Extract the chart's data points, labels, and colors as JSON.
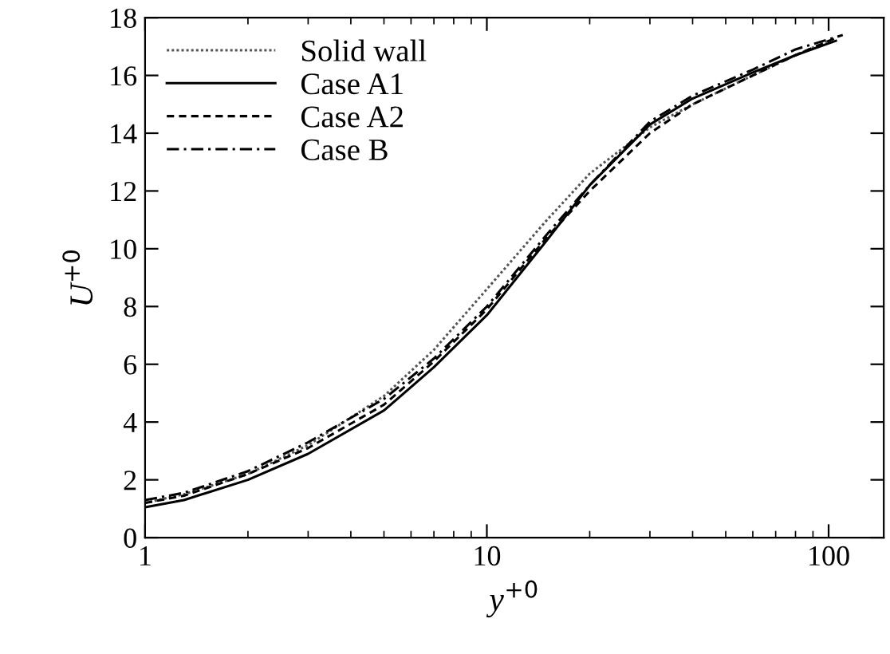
{
  "chart_data": {
    "type": "line",
    "xlabel": "y$^{+0}$",
    "ylabel": "U$^{+0}$",
    "log": "x",
    "xlim": [
      1,
      145
    ],
    "xticks": [
      1,
      10,
      100
    ],
    "ylim": [
      0,
      18
    ],
    "yticks": [
      0,
      2,
      4,
      6,
      8,
      10,
      12,
      14,
      16,
      18
    ],
    "grid": false,
    "legend": "top left",
    "x": [
      1,
      1.3,
      2,
      3,
      5,
      7,
      10,
      15,
      20,
      30,
      40,
      60,
      80,
      105
    ],
    "series": [
      {
        "name": "Solid wall",
        "color": "#555555",
        "line_style": "dotted",
        "x": [
          1,
          1.3,
          2,
          3,
          5,
          7,
          10,
          15,
          20,
          30,
          40,
          60,
          80,
          100
        ],
        "values": [
          1.2,
          1.5,
          2.2,
          3.2,
          4.9,
          6.5,
          8.6,
          11.0,
          12.6,
          14.2,
          15.0,
          16.0,
          16.7,
          17.2
        ]
      },
      {
        "name": "Case A1",
        "color": "#000000",
        "line_style": "solid",
        "values": [
          1.05,
          1.3,
          2.0,
          2.9,
          4.4,
          5.9,
          7.7,
          10.3,
          12.2,
          14.3,
          15.2,
          16.1,
          16.7,
          17.2
        ]
      },
      {
        "name": "Case A2",
        "color": "#000000",
        "line_style": "dashed",
        "values": [
          1.2,
          1.45,
          2.2,
          3.1,
          4.6,
          6.1,
          7.9,
          10.4,
          12.0,
          14.0,
          15.0,
          16.0,
          16.7,
          17.3
        ]
      },
      {
        "name": "Case B",
        "color": "#000000",
        "line_style": "dashdot",
        "x": [
          1,
          1.3,
          2,
          3,
          5,
          7,
          10,
          15,
          20,
          30,
          40,
          60,
          80,
          110
        ],
        "values": [
          1.3,
          1.55,
          2.3,
          3.3,
          4.8,
          6.2,
          8.0,
          10.5,
          12.2,
          14.4,
          15.3,
          16.2,
          16.9,
          17.4
        ]
      }
    ]
  }
}
